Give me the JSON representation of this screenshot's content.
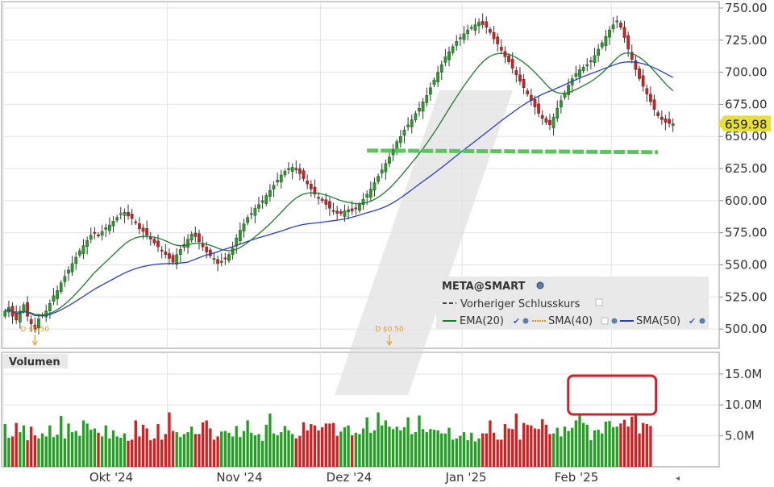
{
  "chart_data": {
    "type": "candlestick",
    "symbol_label": "META@SMART",
    "x_tick_labels": [
      "Okt '24",
      "Nov '24",
      "Dez '24",
      "Jan '25",
      "Feb '25"
    ],
    "price_axis": {
      "range": [
        485,
        755
      ],
      "tick_values": [
        500,
        525,
        550,
        575,
        600,
        625,
        650,
        675,
        700,
        725,
        750
      ],
      "tick_labels": [
        "500.00",
        "525.00",
        "550.00",
        "575.00",
        "600.00",
        "625.00",
        "650.00",
        "675.00",
        "700.00",
        "725.00",
        "750.00"
      ]
    },
    "last_price": 659.98,
    "last_price_label": "659.98",
    "legend": {
      "prev_close": "Vorheriger Schlusskurs",
      "ema20": "EMA(20)",
      "sma40": "SMA(40)",
      "sma50": "SMA(50)"
    },
    "dividends": [
      {
        "label": "D $0.50",
        "date_index": 8
      },
      {
        "label": "D $0.50",
        "date_index": 103
      }
    ],
    "support_line": {
      "value": 639,
      "from_index": 97,
      "to_index": 175
    },
    "volume_panel": {
      "title": "Volumen",
      "range": [
        0,
        18500000
      ],
      "tick_values": [
        5000000,
        10000000,
        15000000
      ],
      "tick_labels": [
        "5.0M",
        "10.0M",
        "15.0M"
      ],
      "highlight_from_index": 152,
      "highlight_to_index": 171
    },
    "series": {
      "closes": [
        514,
        517,
        510,
        507,
        514,
        519,
        510,
        504,
        500,
        508,
        511,
        514,
        520,
        526,
        530,
        536,
        541,
        546,
        551,
        556,
        561,
        565,
        569,
        573,
        575,
        573,
        576,
        579,
        581,
        584,
        587,
        590,
        591,
        588,
        586,
        583,
        578,
        576,
        573,
        570,
        567,
        564,
        561,
        558,
        555,
        552,
        558,
        562,
        566,
        570,
        574,
        572,
        568,
        564,
        560,
        557,
        555,
        551,
        553,
        555,
        558,
        563,
        571,
        577,
        582,
        587,
        590,
        594,
        597,
        600,
        604,
        608,
        612,
        616,
        620,
        623,
        625,
        626,
        624,
        621,
        617,
        613,
        609,
        605,
        602,
        600,
        597,
        594,
        592,
        590,
        590,
        592,
        593,
        592,
        594,
        597,
        601,
        605,
        609,
        614,
        619,
        624,
        629,
        634,
        640,
        646,
        650,
        655,
        659,
        663,
        668,
        672,
        677,
        682,
        688,
        694,
        700,
        706,
        712,
        716,
        720,
        724,
        727,
        730,
        733,
        735,
        737,
        739,
        737,
        735,
        731,
        726,
        722,
        717,
        712,
        708,
        703,
        698,
        693,
        688,
        683,
        678,
        673,
        668,
        664,
        661,
        659,
        665,
        672,
        678,
        684,
        690,
        695,
        699,
        702,
        704,
        706,
        709,
        713,
        718,
        723,
        728,
        733,
        737,
        740,
        735,
        727,
        718,
        710,
        702,
        695,
        689,
        683,
        677,
        671,
        666,
        663,
        661,
        660,
        659.98
      ],
      "volumes": [
        6.9,
        4.7,
        4.9,
        7.1,
        5.6,
        6.7,
        4.3,
        6.5,
        5.1,
        4.6,
        5.4,
        4.9,
        6.7,
        4.8,
        5.2,
        8.2,
        4.6,
        7.0,
        5.6,
        5.8,
        5.0,
        7.5,
        7.0,
        6.0,
        6.2,
        5.5,
        4.9,
        6.7,
        4.6,
        5.9,
        4.9,
        4.7,
        5.4,
        4.2,
        4.4,
        7.5,
        4.9,
        6.8,
        6.2,
        4.3,
        4.6,
        6.9,
        4.4,
        5.3,
        8.8,
        5.8,
        5.6,
        4.8,
        5.3,
        5.6,
        6.5,
        5.3,
        5.3,
        7.2,
        7.5,
        6.2,
        4.4,
        4.9,
        5.7,
        5.8,
        5.5,
        4.9,
        6.6,
        4.8,
        5.8,
        7.5,
        5.5,
        5.1,
        5.3,
        4.2,
        6.8,
        8.6,
        5.4,
        5.1,
        5.6,
        6.6,
        5.9,
        5.3,
        4.6,
        5.0,
        7.2,
        5.9,
        6.9,
        6.7,
        5.9,
        6.4,
        7.0,
        7.0,
        7.1,
        5.0,
        5.7,
        6.4,
        6.7,
        5.1,
        5.5,
        5.3,
        6.2,
        8.0,
        5.5,
        5.9,
        8.8,
        6.7,
        7.5,
        6.5,
        6.1,
        6.5,
        5.9,
        6.4,
        8.0,
        5.3,
        5.6,
        8.3,
        6.1,
        5.6,
        6.1,
        6.0,
        5.9,
        5.4,
        5.4,
        6.3,
        4.4,
        4.6,
        5.0,
        5.6,
        4.3,
        5.5,
        4.1,
        4.6,
        5.4,
        5.4,
        7.5,
        5.5,
        4.4,
        4.4,
        6.9,
        6.2,
        6.1,
        8.6,
        4.4,
        7.1,
        6.8,
        6.7,
        6.2,
        6.1,
        7.7,
        6.8,
        5.3,
        5.4,
        6.3,
        4.9,
        6.5,
        5.8,
        6.3,
        7.5,
        8.3,
        7.1,
        6.8,
        4.3,
        5.9,
        6.0,
        5.4,
        7.3,
        7.4,
        6.4,
        6.5,
        7.0,
        7.6,
        6.5,
        8.1,
        8.5,
        5.4,
        7.1,
        6.9,
        6.6
      ]
    }
  }
}
